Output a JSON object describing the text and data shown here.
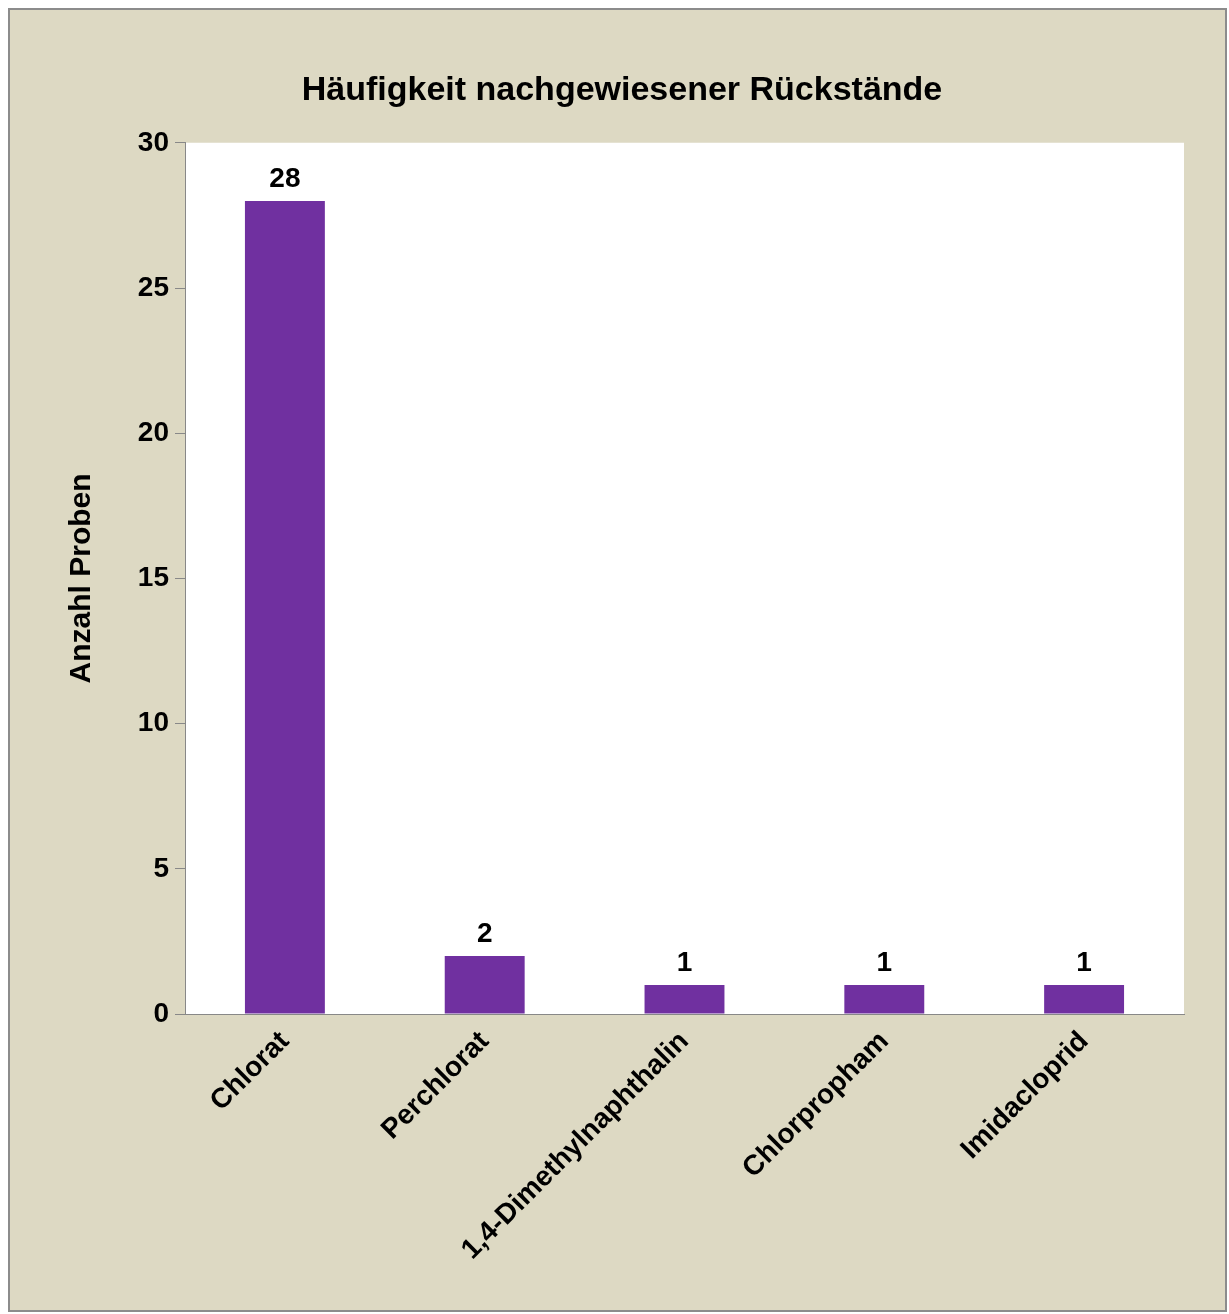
{
  "chart_data": {
    "type": "bar",
    "title": "Häufigkeit nachgewiesener Rückstände",
    "ylabel": "Anzahl Proben",
    "categories": [
      "Chlorat",
      "Perchlorat",
      "1,4-Dimethylnaphthalin",
      "Chlorpropham",
      "Imidacloprid"
    ],
    "values": [
      28,
      2,
      1,
      1,
      1
    ],
    "color": "#7030a0",
    "ylim": [
      0,
      30
    ],
    "yticks": [
      0,
      5,
      10,
      15,
      20,
      25,
      30
    ],
    "grid": false,
    "legend": false,
    "data_labels": true
  }
}
